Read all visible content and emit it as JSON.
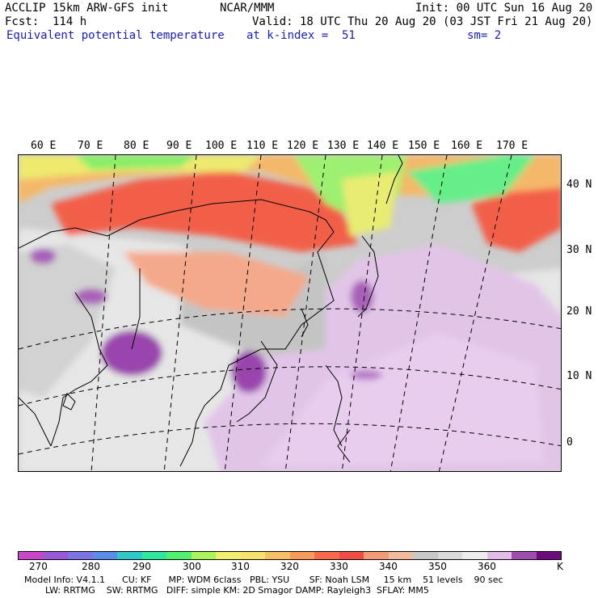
{
  "header": {
    "model_title": "ACCLIP 15km ARW-GFS init",
    "org": "NCAR/MMM",
    "init_time": "Init: 00 UTC Sun 16 Aug 20",
    "forecast": "Fcst:  114 h",
    "valid_time": "Valid: 18 UTC Thu 20 Aug 20 (03 JST Fri 21 Aug 20)",
    "field": "Equivalent potential temperature",
    "level": "at k-index =  51",
    "smoothing": "sm= 2"
  },
  "map": {
    "longitude_labels": [
      "60 E",
      "70 E",
      "80 E",
      "90 E",
      "100 E",
      "110 E",
      "120 E",
      "130 E",
      "140 E",
      "150 E",
      "160 E",
      "170 E"
    ],
    "latitude_labels": [
      "40 N",
      "30 N",
      "20 N",
      "10 N",
      "0"
    ]
  },
  "colorbar": {
    "colors": [
      "#c846c8",
      "#9a5ad8",
      "#7c74e6",
      "#5a8ce8",
      "#30c8c8",
      "#2ee89e",
      "#52f06e",
      "#a8f45a",
      "#f0f06e",
      "#f8e26e",
      "#f8c064",
      "#f89a5a",
      "#f86a4a",
      "#f04c44",
      "#f49a78",
      "#f2bc9c",
      "#c8c8c8",
      "#dadada",
      "#ececec",
      "#e0bce6",
      "#a04cb0",
      "#6e0a7e"
    ],
    "labels": [
      "270",
      "280",
      "290",
      "300",
      "310",
      "320",
      "330",
      "340",
      "350",
      "360",
      "K"
    ]
  },
  "model_info": {
    "line1": "Model Info: V4.1.1      CU: KF      MP: WDM 6class   PBL: YSU       SF: Noah LSM     15 km    51 levels    90 sec",
    "line2": "LW: RRTMG    SW: RRTMG   DIFF: simple KM: 2D Smagor DAMP: Rayleigh3  SFLAY: MM5"
  }
}
